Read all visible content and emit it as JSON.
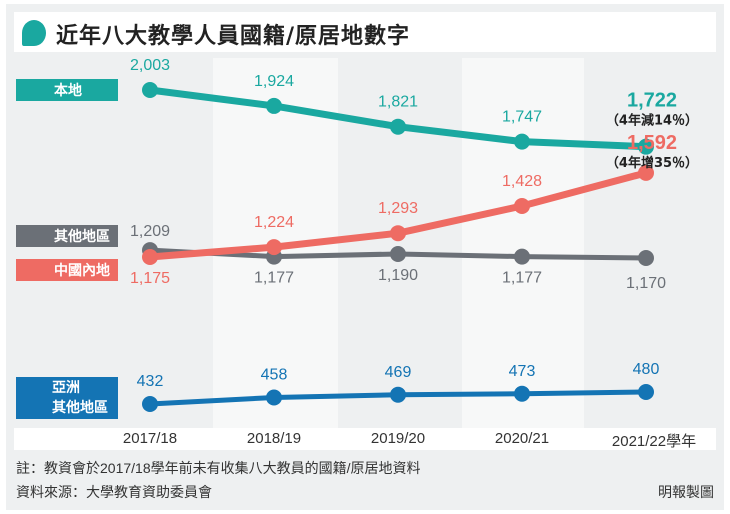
{
  "title": "近年八大教學人員國籍/原居地數字",
  "colors": {
    "local": "#1aa8a0",
    "mainland": "#ee6b63",
    "other": "#6b7077",
    "asia": "#1474b4"
  },
  "chart_data": {
    "type": "line",
    "categories": [
      "2017/18",
      "2018/19",
      "2019/20",
      "2020/21",
      "2021/22學年"
    ],
    "series": [
      {
        "name": "本地",
        "values": [
          2003,
          1924,
          1821,
          1747,
          1722
        ],
        "labels": [
          "2,003",
          "1,924",
          "1,821",
          "1,747",
          "1,722"
        ],
        "annotation": "（4年減14％）"
      },
      {
        "name": "中國內地",
        "values": [
          1175,
          1224,
          1293,
          1428,
          1592
        ],
        "labels": [
          "1,175",
          "1,224",
          "1,293",
          "1,428",
          "1,592"
        ],
        "annotation": "（4年增35％）"
      },
      {
        "name": "其他地區",
        "values": [
          1209,
          1177,
          1190,
          1177,
          1170
        ],
        "labels": [
          "1,209",
          "1,177",
          "1,190",
          "1,177",
          "1,170"
        ]
      },
      {
        "name": "亞洲其他地區",
        "name_lines": [
          "亞洲",
          "其他地區"
        ],
        "values": [
          432,
          458,
          469,
          473,
          480
        ],
        "labels": [
          "432",
          "458",
          "469",
          "473",
          "480"
        ]
      }
    ],
    "grid": false,
    "legend": "left"
  },
  "notes": {
    "note": "註：教資會於2017/18學年前未有收集八大教員的國籍/原居地資料",
    "source": "資料來源：大學教育資助委員會",
    "credit": "明報製圖"
  }
}
